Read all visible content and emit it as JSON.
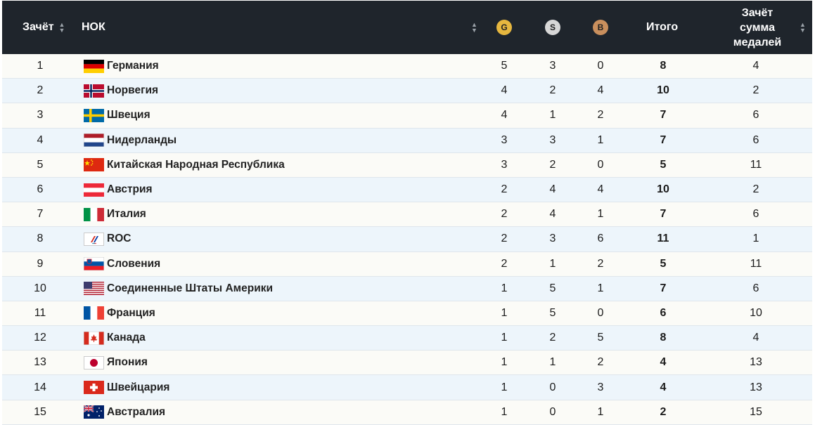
{
  "header": {
    "rank": "Зачёт",
    "noc": "НОК",
    "gold": "G",
    "silver": "S",
    "bronze": "B",
    "total": "Итого",
    "rank_total_l1": "Зачёт",
    "rank_total_l2": "сумма",
    "rank_total_l3": "медалей",
    "sort_up": "▲",
    "sort_down": "▼"
  },
  "rows": [
    {
      "rank": "1",
      "country": "Германия",
      "flag": "flag-germany",
      "gold": "5",
      "silver": "3",
      "bronze": "0",
      "total": "8",
      "rank_total": "4"
    },
    {
      "rank": "2",
      "country": "Норвегия",
      "flag": "flag-norway",
      "gold": "4",
      "silver": "2",
      "bronze": "4",
      "total": "10",
      "rank_total": "2"
    },
    {
      "rank": "3",
      "country": "Швеция",
      "flag": "flag-sweden",
      "gold": "4",
      "silver": "1",
      "bronze": "2",
      "total": "7",
      "rank_total": "6"
    },
    {
      "rank": "4",
      "country": "Нидерланды",
      "flag": "flag-netherlands",
      "gold": "3",
      "silver": "3",
      "bronze": "1",
      "total": "7",
      "rank_total": "6"
    },
    {
      "rank": "5",
      "country": "Китайская Народная Республика",
      "flag": "flag-china",
      "gold": "3",
      "silver": "2",
      "bronze": "0",
      "total": "5",
      "rank_total": "11"
    },
    {
      "rank": "6",
      "country": "Австрия",
      "flag": "flag-austria",
      "gold": "2",
      "silver": "4",
      "bronze": "4",
      "total": "10",
      "rank_total": "2"
    },
    {
      "rank": "7",
      "country": "Италия",
      "flag": "flag-italy",
      "gold": "2",
      "silver": "4",
      "bronze": "1",
      "total": "7",
      "rank_total": "6"
    },
    {
      "rank": "8",
      "country": "ROC",
      "flag": "flag-roc",
      "gold": "2",
      "silver": "3",
      "bronze": "6",
      "total": "11",
      "rank_total": "1"
    },
    {
      "rank": "9",
      "country": "Словения",
      "flag": "flag-slovenia",
      "gold": "2",
      "silver": "1",
      "bronze": "2",
      "total": "5",
      "rank_total": "11"
    },
    {
      "rank": "10",
      "country": "Соединенные Штаты Америки",
      "flag": "flag-usa",
      "gold": "1",
      "silver": "5",
      "bronze": "1",
      "total": "7",
      "rank_total": "6"
    },
    {
      "rank": "11",
      "country": "Франция",
      "flag": "flag-france",
      "gold": "1",
      "silver": "5",
      "bronze": "0",
      "total": "6",
      "rank_total": "10"
    },
    {
      "rank": "12",
      "country": "Канада",
      "flag": "flag-canada",
      "gold": "1",
      "silver": "2",
      "bronze": "5",
      "total": "8",
      "rank_total": "4"
    },
    {
      "rank": "13",
      "country": "Япония",
      "flag": "flag-japan",
      "gold": "1",
      "silver": "1",
      "bronze": "2",
      "total": "4",
      "rank_total": "13"
    },
    {
      "rank": "14",
      "country": "Швейцария",
      "flag": "flag-switzerland",
      "gold": "1",
      "silver": "0",
      "bronze": "3",
      "total": "4",
      "rank_total": "13"
    },
    {
      "rank": "15",
      "country": "Австралия",
      "flag": "flag-australia",
      "gold": "1",
      "silver": "0",
      "bronze": "1",
      "total": "2",
      "rank_total": "15"
    }
  ]
}
